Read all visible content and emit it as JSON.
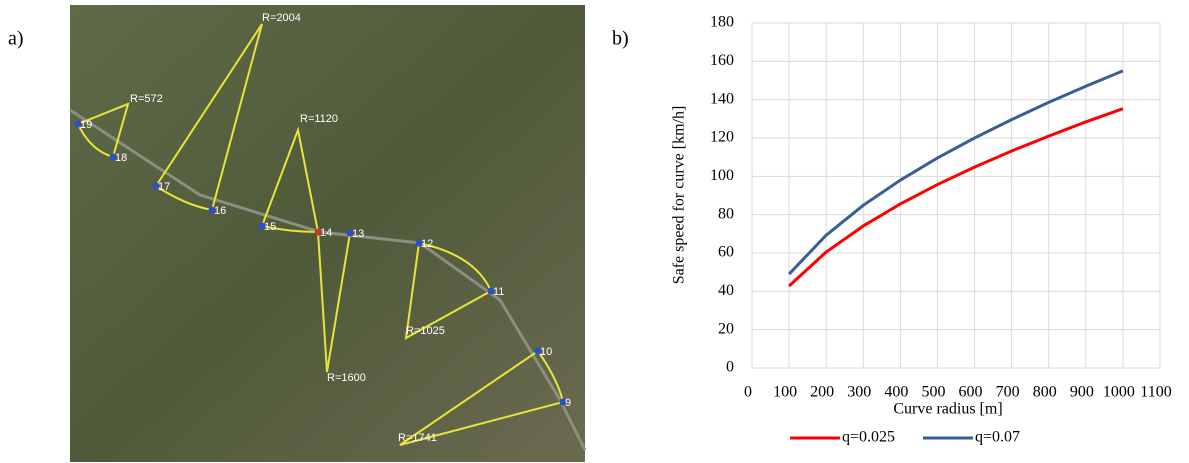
{
  "panel_labels": {
    "a": "a)",
    "b": "b)"
  },
  "map": {
    "nodes": [
      "9",
      "10",
      "11",
      "12",
      "13",
      "14",
      "15",
      "16",
      "17",
      "18",
      "19"
    ],
    "radii": [
      "R=572",
      "R=2004",
      "R=1120",
      "R=1025",
      "R=1600",
      "R=1741"
    ]
  },
  "chart_data": {
    "type": "line",
    "xlabel": "Curve radius [m]",
    "ylabel": "Safe speed for curve [km/h]",
    "x": [
      100,
      200,
      300,
      400,
      500,
      600,
      700,
      800,
      900,
      1000
    ],
    "series": [
      {
        "name": "q=0.025",
        "color": "#ff0000",
        "values": [
          42.8,
          60.5,
          74.1,
          85.6,
          95.7,
          104.8,
          113.2,
          121.0,
          128.4,
          135.3
        ]
      },
      {
        "name": "q=0.07",
        "color": "#3a5f96",
        "values": [
          49.0,
          69.3,
          84.9,
          98.0,
          109.6,
          120.0,
          129.6,
          138.6,
          147.0,
          155.0
        ]
      }
    ],
    "xlim": [
      0,
      1100
    ],
    "xticks": [
      0,
      100,
      200,
      300,
      400,
      500,
      600,
      700,
      800,
      900,
      1000,
      1100
    ],
    "ylim": [
      0,
      180
    ],
    "yticks": [
      0,
      20,
      40,
      60,
      80,
      100,
      120,
      140,
      160,
      180
    ],
    "grid": true,
    "legend": "bottom"
  }
}
